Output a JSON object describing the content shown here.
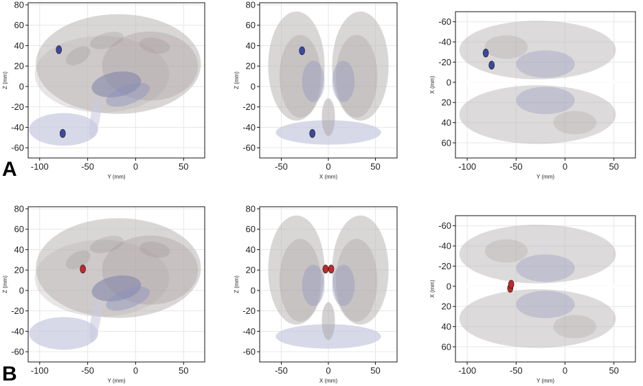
{
  "panels": [
    {
      "letter": "A",
      "lesion_color": "#3b4a9e"
    },
    {
      "letter": "B",
      "lesion_color": "#c0282d"
    }
  ],
  "chart_data": [
    {
      "type": "scatter",
      "row": "A",
      "view": "sagittal",
      "xlabel": "Y (mm)",
      "ylabel": "Z (mm)",
      "xlim": [
        -112,
        72
      ],
      "ylim": [
        -70,
        82
      ],
      "x_inverted": false,
      "y_inverted": false,
      "xticks": [
        -100,
        -50,
        0,
        50
      ],
      "yticks": [
        -60,
        -40,
        -20,
        0,
        20,
        40,
        60,
        80
      ],
      "lesions": [
        {
          "x": -80,
          "y": 36
        },
        {
          "x": -76,
          "y": -46
        }
      ]
    },
    {
      "type": "scatter",
      "row": "A",
      "view": "coronal",
      "xlabel": "X (mm)",
      "ylabel": "Z (mm)",
      "xlim": [
        -73,
        73
      ],
      "ylim": [
        -70,
        82
      ],
      "x_inverted": false,
      "y_inverted": false,
      "xticks": [
        -50,
        0,
        50
      ],
      "yticks": [
        -60,
        -40,
        -20,
        0,
        20,
        40,
        60,
        80
      ],
      "lesions": [
        {
          "x": -28,
          "y": 35
        },
        {
          "x": -17,
          "y": -46
        }
      ]
    },
    {
      "type": "scatter",
      "row": "A",
      "view": "axial",
      "xlabel": "Y (mm)",
      "ylabel": "X (mm)",
      "xlim": [
        -112,
        72
      ],
      "ylim": [
        -70,
        75
      ],
      "x_inverted": false,
      "y_inverted": true,
      "xticks": [
        -100,
        -50,
        0,
        50
      ],
      "yticks": [
        -60,
        -40,
        -20,
        0,
        20,
        40,
        60
      ],
      "lesions": [
        {
          "x": -81,
          "y": -29
        },
        {
          "x": -75,
          "y": -17
        }
      ]
    },
    {
      "type": "scatter",
      "row": "B",
      "view": "sagittal",
      "xlabel": "Y (mm)",
      "ylabel": "Z (mm)",
      "xlim": [
        -112,
        72
      ],
      "ylim": [
        -70,
        82
      ],
      "x_inverted": false,
      "y_inverted": false,
      "xticks": [
        -100,
        -50,
        0,
        50
      ],
      "yticks": [
        -60,
        -40,
        -20,
        0,
        20,
        40,
        60,
        80
      ],
      "lesions": [
        {
          "x": -55,
          "y": 21
        }
      ]
    },
    {
      "type": "scatter",
      "row": "B",
      "view": "coronal",
      "xlabel": "X (mm)",
      "ylabel": "Z (mm)",
      "xlim": [
        -73,
        73
      ],
      "ylim": [
        -70,
        82
      ],
      "x_inverted": false,
      "y_inverted": false,
      "xticks": [
        -50,
        0,
        50
      ],
      "yticks": [
        -60,
        -40,
        -20,
        0,
        20,
        40,
        60,
        80
      ],
      "lesions": [
        {
          "x": -3,
          "y": 21
        },
        {
          "x": 3,
          "y": 21
        }
      ]
    },
    {
      "type": "scatter",
      "row": "B",
      "view": "axial",
      "xlabel": "Y (mm)",
      "ylabel": "X (mm)",
      "xlim": [
        -112,
        72
      ],
      "ylim": [
        -70,
        75
      ],
      "x_inverted": false,
      "y_inverted": true,
      "xticks": [
        -100,
        -50,
        0,
        50
      ],
      "yticks": [
        -60,
        -40,
        -20,
        0,
        20,
        40,
        60
      ],
      "lesions": [
        {
          "x": -56,
          "y": 2
        },
        {
          "x": -55,
          "y": -2
        }
      ]
    }
  ]
}
